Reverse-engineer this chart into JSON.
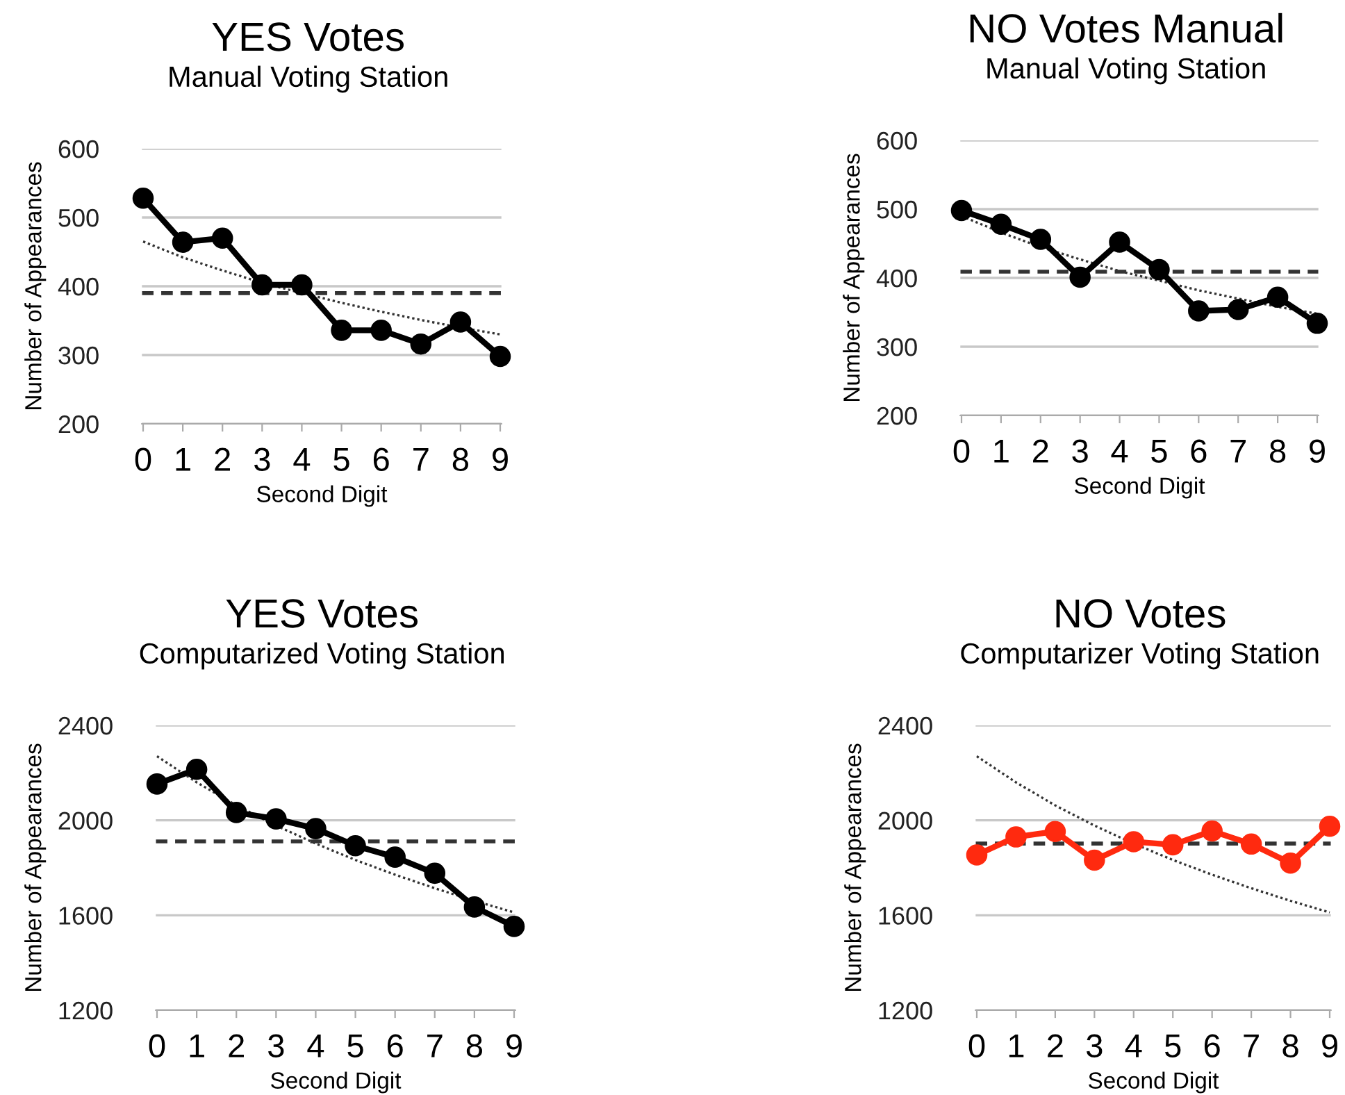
{
  "chart_data": [
    {
      "type": "line",
      "title": "YES Votes",
      "subtitle": "Manual Voting Station",
      "xlabel": "Second Digit",
      "ylabel": "Number of Appearances",
      "categories": [
        "0",
        "1",
        "2",
        "3",
        "4",
        "5",
        "6",
        "7",
        "8",
        "9"
      ],
      "ylim": [
        200,
        600
      ],
      "yticks": [
        200,
        300,
        400,
        500,
        600
      ],
      "grid": "y",
      "marker": "circle",
      "series": [
        {
          "color": "#000000",
          "values": [
            528,
            464,
            470,
            402,
            402,
            336,
            336,
            316,
            348,
            298
          ]
        },
        {
          "color": "#333333",
          "line_style": "dotted",
          "marker": "none",
          "values": [
            465,
            442,
            423,
            405,
            390,
            376,
            363,
            351,
            340,
            330
          ]
        }
      ],
      "ref_lines": [
        {
          "axis": "y",
          "value": 390,
          "color": "#333333",
          "line_style": "dashed"
        }
      ]
    },
    {
      "type": "line",
      "title": "NO Votes Manual",
      "subtitle": "Manual Voting Station",
      "xlabel": "Second Digit",
      "ylabel": "Number of Appearances",
      "categories": [
        "0",
        "1",
        "2",
        "3",
        "4",
        "5",
        "6",
        "7",
        "8",
        "9"
      ],
      "ylim": [
        200,
        600
      ],
      "yticks": [
        200,
        300,
        400,
        500,
        600
      ],
      "grid": "y",
      "marker": "circle",
      "series": [
        {
          "color": "#000000",
          "values": [
            498,
            478,
            456,
            401,
            452,
            412,
            352,
            354,
            372,
            334
          ]
        },
        {
          "color": "#333333",
          "line_style": "dotted",
          "marker": "none",
          "values": [
            490,
            466,
            445,
            427,
            410,
            396,
            382,
            370,
            358,
            348
          ]
        }
      ],
      "ref_lines": [
        {
          "axis": "y",
          "value": 409,
          "color": "#333333",
          "line_style": "dashed"
        }
      ]
    },
    {
      "type": "line",
      "title": "YES Votes",
      "subtitle": "Computarized Voting Station",
      "xlabel": "Second Digit",
      "ylabel": "Number of Appearances",
      "categories": [
        "0",
        "1",
        "2",
        "3",
        "4",
        "5",
        "6",
        "7",
        "8",
        "9"
      ],
      "ylim": [
        1200,
        2400
      ],
      "yticks": [
        1200,
        1600,
        2000,
        2400
      ],
      "grid": "y",
      "marker": "circle",
      "series": [
        {
          "color": "#000000",
          "values": [
            2153,
            2215,
            2033,
            2006,
            1965,
            1893,
            1845,
            1777,
            1635,
            1553
          ]
        },
        {
          "color": "#333333",
          "line_style": "dotted",
          "marker": "none",
          "values": [
            2270,
            2160,
            2063,
            1978,
            1902,
            1833,
            1771,
            1714,
            1661,
            1612
          ]
        }
      ],
      "ref_lines": [
        {
          "axis": "y",
          "value": 1911,
          "color": "#333333",
          "line_style": "dashed"
        }
      ]
    },
    {
      "type": "line",
      "title": "NO Votes",
      "subtitle": "Computarizer Voting Station",
      "xlabel": "Second Digit",
      "ylabel": "Number of Appearances",
      "categories": [
        "0",
        "1",
        "2",
        "3",
        "4",
        "5",
        "6",
        "7",
        "8",
        "9"
      ],
      "ylim": [
        1200,
        2400
      ],
      "yticks": [
        1200,
        1600,
        2000,
        2400
      ],
      "grid": "y",
      "marker": "circle",
      "series": [
        {
          "color": "#ff2a0f",
          "values": [
            1854,
            1930,
            1953,
            1832,
            1910,
            1897,
            1955,
            1900,
            1820,
            1975
          ]
        },
        {
          "color": "#333333",
          "line_style": "dotted",
          "marker": "none",
          "values": [
            2270,
            2160,
            2063,
            1978,
            1902,
            1833,
            1771,
            1714,
            1661,
            1612
          ]
        }
      ],
      "ref_lines": [
        {
          "axis": "y",
          "value": 1902,
          "color": "#333333",
          "line_style": "dashed"
        }
      ]
    }
  ]
}
